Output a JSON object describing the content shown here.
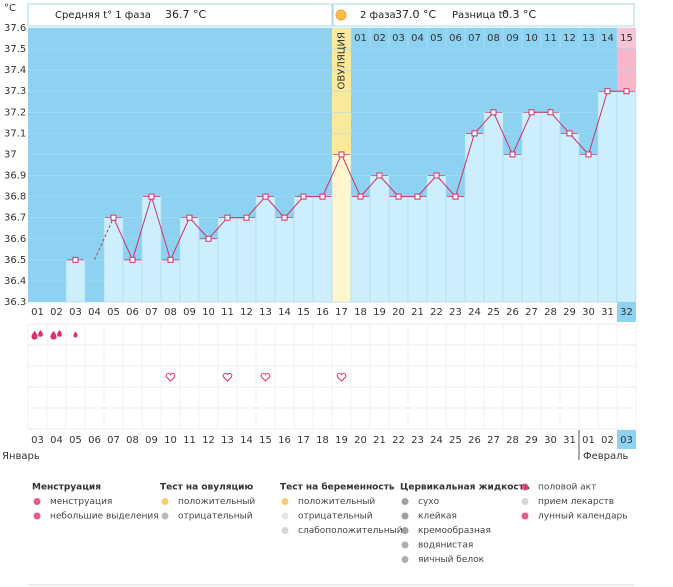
{
  "header": {
    "unit": "°C",
    "phase1_label": "Средняя t° 1 фаза",
    "phase1_value": "36.7 °C",
    "phase2_label": "2 фаза",
    "phase2_value": "37.0 °C",
    "diff_label": "Разница t°",
    "diff_value": "0.3 °C"
  },
  "chart_data": {
    "type": "line",
    "categories": [
      "01",
      "02",
      "03",
      "04",
      "05",
      "06",
      "07",
      "08",
      "09",
      "10",
      "11",
      "12",
      "13",
      "14",
      "15",
      "16",
      "17",
      "18",
      "19",
      "20",
      "21",
      "22",
      "23",
      "24",
      "25",
      "26",
      "27",
      "28",
      "29",
      "30",
      "31",
      "32"
    ],
    "series": [
      {
        "name": "Температура",
        "color": "#d0306a",
        "values": [
          null,
          null,
          36.5,
          null,
          36.7,
          36.5,
          36.8,
          36.5,
          36.7,
          36.6,
          36.7,
          36.7,
          36.8,
          36.7,
          36.8,
          36.8,
          37.0,
          36.8,
          36.9,
          36.8,
          36.8,
          36.9,
          36.8,
          37.1,
          37.2,
          37.0,
          37.2,
          37.2,
          37.1,
          37.0,
          37.3,
          37.3
        ]
      }
    ],
    "ylim": [
      36.3,
      37.6
    ],
    "yticks": [
      36.3,
      36.4,
      36.5,
      36.6,
      36.7,
      36.8,
      36.9,
      37,
      37.1,
      37.2,
      37.3,
      37.4,
      37.5,
      37.6
    ],
    "grid": true,
    "ovulation_index": 16,
    "ovulation_label": "ОВУЛЯЦИЯ",
    "phase2_start_index": 17,
    "phase2_days": [
      "01",
      "02",
      "03",
      "04",
      "05",
      "06",
      "07",
      "08",
      "09",
      "10",
      "11",
      "12",
      "13",
      "14",
      "15"
    ],
    "today_index": 31,
    "dates": [
      {
        "text": "03",
        "red": false
      },
      {
        "text": "04",
        "red": true
      },
      {
        "text": "05",
        "red": true
      },
      {
        "text": "06",
        "red": false
      },
      {
        "text": "07",
        "red": false
      },
      {
        "text": "08",
        "red": false
      },
      {
        "text": "09",
        "red": false
      },
      {
        "text": "10",
        "red": false
      },
      {
        "text": "11",
        "red": true
      },
      {
        "text": "12",
        "red": true
      },
      {
        "text": "13",
        "red": false
      },
      {
        "text": "14",
        "red": false
      },
      {
        "text": "15",
        "red": false
      },
      {
        "text": "16",
        "red": false
      },
      {
        "text": "17",
        "red": false
      },
      {
        "text": "18",
        "red": true
      },
      {
        "text": "19",
        "red": true
      },
      {
        "text": "20",
        "red": false
      },
      {
        "text": "21",
        "red": false
      },
      {
        "text": "22",
        "red": false
      },
      {
        "text": "23",
        "red": false
      },
      {
        "text": "24",
        "red": false
      },
      {
        "text": "25",
        "red": true
      },
      {
        "text": "26",
        "red": true
      },
      {
        "text": "27",
        "red": false
      },
      {
        "text": "28",
        "red": false
      },
      {
        "text": "29",
        "red": false
      },
      {
        "text": "30",
        "red": false
      },
      {
        "text": "31",
        "red": false
      },
      {
        "text": "01",
        "red": true
      },
      {
        "text": "02",
        "red": true
      },
      {
        "text": "03",
        "red": false
      }
    ],
    "months": [
      {
        "name": "Январь",
        "start_index": 0
      },
      {
        "name": "Февраль",
        "start_index": 29
      }
    ],
    "events": {
      "menstruation": [
        0,
        1
      ],
      "spotting": [
        2
      ],
      "intercourse": [
        7,
        10,
        12,
        16
      ]
    }
  },
  "legend": [
    {
      "title": "Менструация",
      "items": [
        "менструация",
        "небольшие выделения"
      ]
    },
    {
      "title": "Тест на овуляцию",
      "items": [
        "положительный",
        "отрицательный"
      ]
    },
    {
      "title": "Тест на беременность",
      "items": [
        "положительный",
        "отрицательный",
        "слабоположительный"
      ]
    },
    {
      "title": "Цервикальная жидкость",
      "items": [
        "сухо",
        "клейкая",
        "кремообразная",
        "водянистая",
        "яичный белок"
      ]
    },
    {
      "items": [
        "половой акт",
        "прием лекарств",
        "лунный календарь"
      ]
    }
  ]
}
